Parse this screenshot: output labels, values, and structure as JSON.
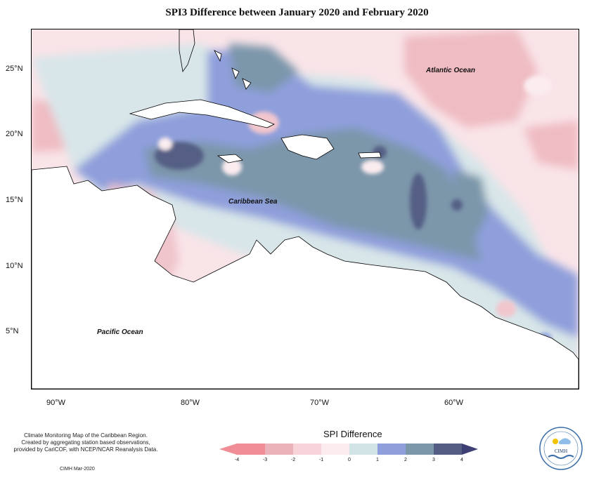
{
  "title": "SPI3 Difference between January 2020 and February 2020",
  "axes": {
    "lat_ticks": [
      "25°N",
      "20°N",
      "15°N",
      "10°N",
      "5°N"
    ],
    "lon_ticks": [
      "90°W",
      "80°W",
      "70°W",
      "60°W"
    ]
  },
  "labels": {
    "atlantic": "Atlantic Ocean",
    "caribbean": "Caribbean Sea",
    "pacific": "Pacific Ocean"
  },
  "credit": {
    "line1": "Climate Monitoring Map of the Caribbean Region.",
    "line2": "Created by aggregating station based observations,",
    "line3": "provided by CariCOF, with NCEP/NCAR Reanalysis Data.",
    "date": "CIMH Mar-2020"
  },
  "legend": {
    "title": "SPI Difference",
    "ticks": [
      "-4",
      "-3",
      "-2",
      "-1",
      "0",
      "1",
      "2",
      "3",
      "4"
    ],
    "colors": [
      "#f08d96",
      "#eab3ba",
      "#f6d3d9",
      "#fbecef",
      "#d2e3e6",
      "#8f9fdb",
      "#7c96aa",
      "#545e85"
    ]
  },
  "logo": {
    "text": "CIMH"
  }
}
